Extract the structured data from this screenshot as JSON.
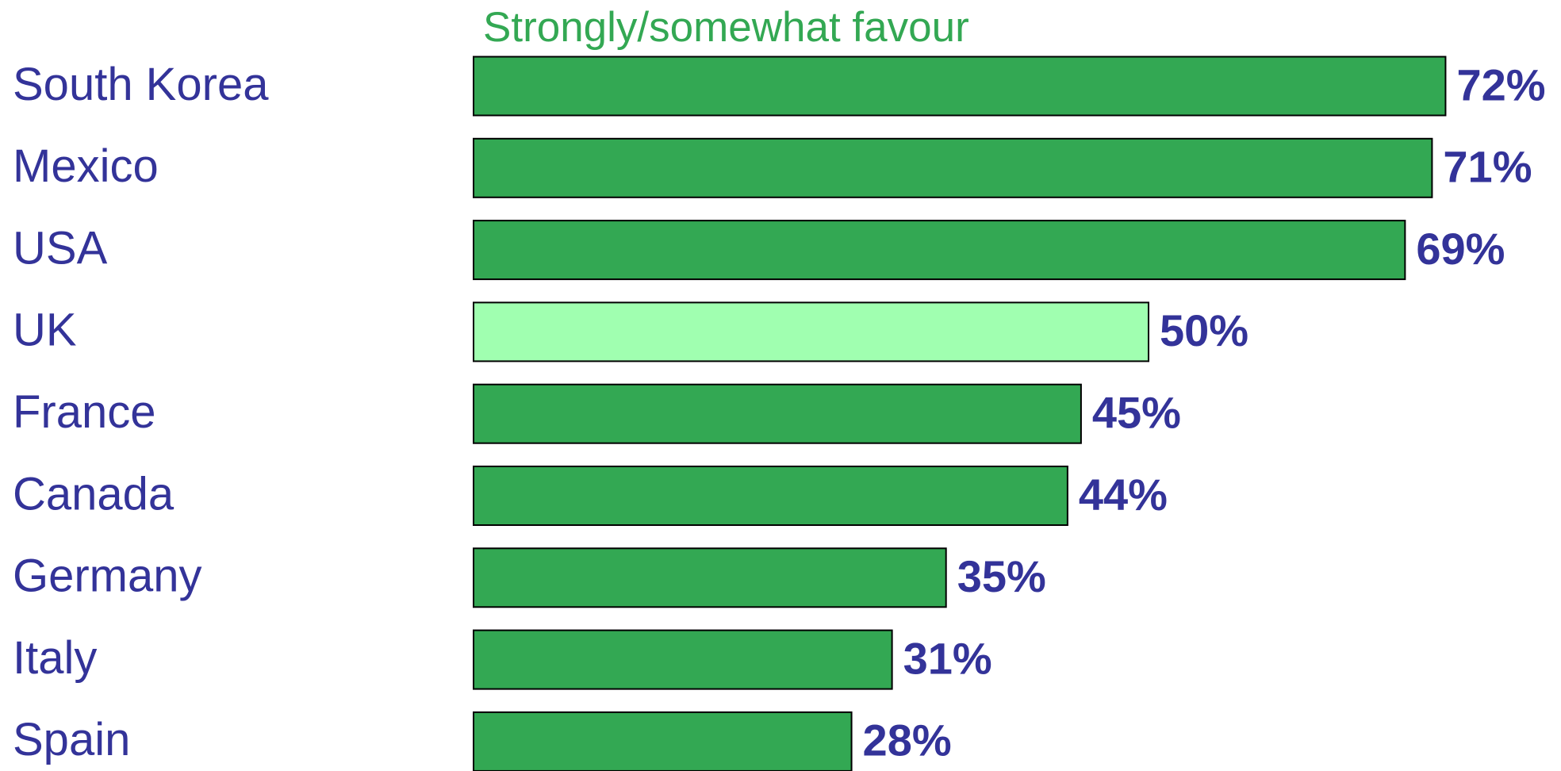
{
  "chart_data": {
    "type": "bar",
    "orientation": "horizontal",
    "title": "Strongly/somewhat favour",
    "categories": [
      "South Korea",
      "Mexico",
      "USA",
      "UK",
      "France",
      "Canada",
      "Germany",
      "Italy",
      "Spain"
    ],
    "values": [
      72,
      71,
      69,
      50,
      45,
      44,
      35,
      31,
      28
    ],
    "value_labels": [
      "72%",
      "71%",
      "69%",
      "50%",
      "45%",
      "44%",
      "35%",
      "31%",
      "28%"
    ],
    "colors": [
      "#33a853",
      "#33a853",
      "#33a853",
      "#a0ffb0",
      "#33a853",
      "#33a853",
      "#33a853",
      "#33a853",
      "#33a853"
    ]
  }
}
